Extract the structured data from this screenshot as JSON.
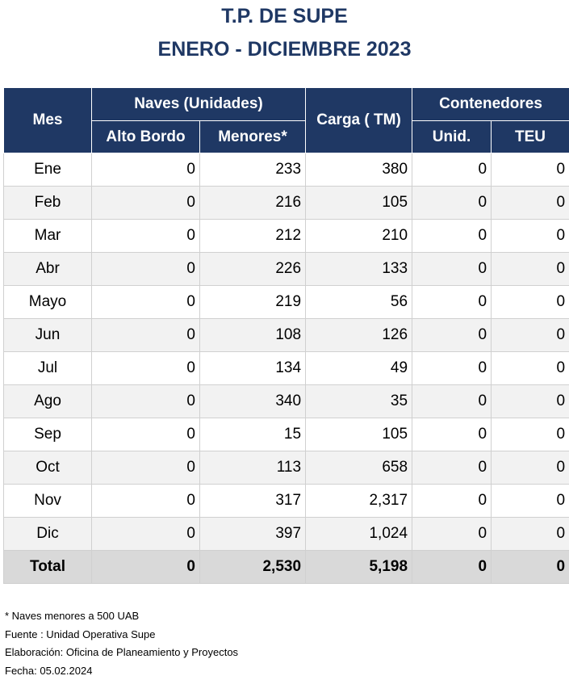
{
  "title": {
    "line1": "T.P. DE SUPE",
    "line2": "ENERO - DICIEMBRE 2023"
  },
  "table": {
    "headers": {
      "mes": "Mes",
      "naves": "Naves (Unidades)",
      "alto_bordo": "Alto Bordo",
      "menores": "Menores*",
      "carga": "Carga ( TM)",
      "contenedores": "Contenedores",
      "unid": "Unid.",
      "teu": "TEU"
    },
    "rows": [
      {
        "mes": "Ene",
        "alto_bordo": "0",
        "menores": "233",
        "carga": "380",
        "unid": "0",
        "teu": "0"
      },
      {
        "mes": "Feb",
        "alto_bordo": "0",
        "menores": "216",
        "carga": "105",
        "unid": "0",
        "teu": "0"
      },
      {
        "mes": "Mar",
        "alto_bordo": "0",
        "menores": "212",
        "carga": "210",
        "unid": "0",
        "teu": "0"
      },
      {
        "mes": "Abr",
        "alto_bordo": "0",
        "menores": "226",
        "carga": "133",
        "unid": "0",
        "teu": "0"
      },
      {
        "mes": "Mayo",
        "alto_bordo": "0",
        "menores": "219",
        "carga": "56",
        "unid": "0",
        "teu": "0"
      },
      {
        "mes": "Jun",
        "alto_bordo": "0",
        "menores": "108",
        "carga": "126",
        "unid": "0",
        "teu": "0"
      },
      {
        "mes": "Jul",
        "alto_bordo": "0",
        "menores": "134",
        "carga": "49",
        "unid": "0",
        "teu": "0"
      },
      {
        "mes": "Ago",
        "alto_bordo": "0",
        "menores": "340",
        "carga": "35",
        "unid": "0",
        "teu": "0"
      },
      {
        "mes": "Sep",
        "alto_bordo": "0",
        "menores": "15",
        "carga": "105",
        "unid": "0",
        "teu": "0"
      },
      {
        "mes": "Oct",
        "alto_bordo": "0",
        "menores": "113",
        "carga": "658",
        "unid": "0",
        "teu": "0"
      },
      {
        "mes": "Nov",
        "alto_bordo": "0",
        "menores": "317",
        "carga": "2,317",
        "unid": "0",
        "teu": "0"
      },
      {
        "mes": "Dic",
        "alto_bordo": "0",
        "menores": "397",
        "carga": "1,024",
        "unid": "0",
        "teu": "0"
      }
    ],
    "total": {
      "mes": "Total",
      "alto_bordo": "0",
      "menores": "2,530",
      "carga": "5,198",
      "unid": "0",
      "teu": "0"
    }
  },
  "notes": {
    "note": "* Naves menores a 500 UAB",
    "fuente": "Fuente : Unidad Operativa Supe",
    "elaboracion": "Elaboración: Oficina de Planeamiento y Proyectos",
    "fecha": "Fecha: 05.02.2024"
  },
  "colors": {
    "header_bg": "#1f3864",
    "title_text": "#1f3864",
    "alt_row_bg": "#f2f2f2",
    "total_bg": "#d9d9d9"
  }
}
